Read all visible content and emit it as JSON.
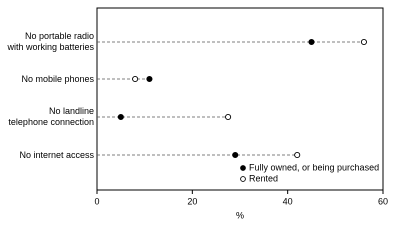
{
  "chart_data": {
    "type": "dot",
    "categories": [
      "No portable radio\nwith working batteries",
      "No mobile phones",
      "No landline\ntelephone connection",
      "No internet access"
    ],
    "series": [
      {
        "name": "Fully owned, or being purchased",
        "color": "#000000",
        "marker": "filled",
        "values": [
          45,
          11,
          5,
          29
        ]
      },
      {
        "name": "Rented",
        "color": "#000000",
        "marker": "open",
        "values": [
          56,
          8,
          27.5,
          42
        ]
      }
    ],
    "xlim": [
      0,
      60
    ],
    "xticks": [
      0,
      20,
      40,
      60
    ],
    "xlabel": "%",
    "legend": "lower right"
  }
}
